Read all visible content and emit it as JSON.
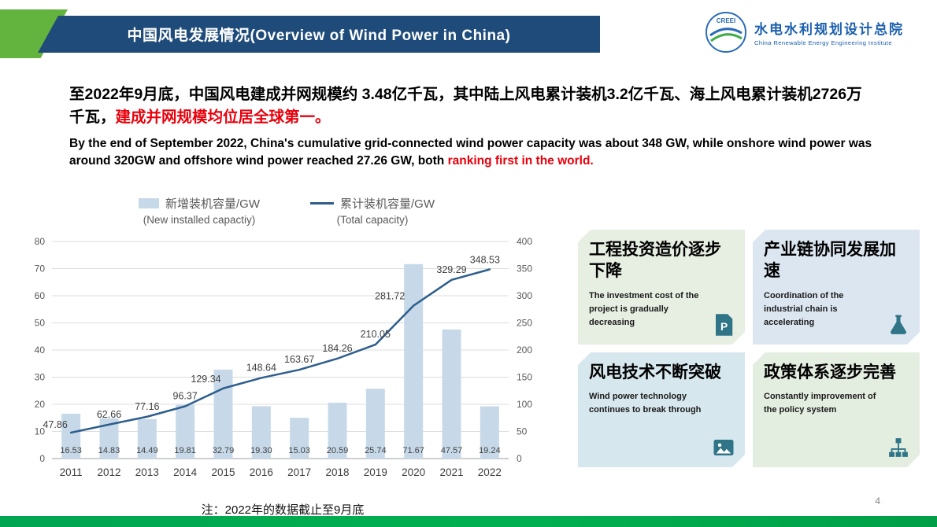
{
  "header": {
    "title": "中国风电发展情况(Overview of Wind Power in China)"
  },
  "logo": {
    "icon": "creei-globe-swirl-icon",
    "badge": "CREEI",
    "org_cn": "水电水利规划设计总院",
    "org_en": "China Renewable Energy Engineering Institute"
  },
  "intro": {
    "cn_main": "至2022年9月底，中国风电建成并网规模约 3.48亿千瓦，其中陆上风电累计装机3.2亿千瓦、海上风电累计装机2726万千瓦，",
    "cn_red": "建成并网规模均位居全球第一。",
    "en_main": "By the end of September 2022, China's cumulative grid-connected wind power capacity was about 348 GW, while onshore wind power was around 320GW and offshore wind power reached 27.26 GW, both ",
    "en_red": "ranking first in the world."
  },
  "chart_data": {
    "type": "bar+line",
    "categories": [
      2011,
      2012,
      2013,
      2014,
      2015,
      2016,
      2017,
      2018,
      2019,
      2020,
      2021,
      2022
    ],
    "series": [
      {
        "name": "新增装机容量/GW",
        "subtitle": "(New installed capactiy)",
        "type": "bar",
        "axis": "left",
        "color": "#C7D9E9",
        "values": [
          16.53,
          14.83,
          14.49,
          19.81,
          32.79,
          19.3,
          15.03,
          20.59,
          25.74,
          71.67,
          47.57,
          19.24
        ]
      },
      {
        "name": "累计装机容量/GW",
        "subtitle": "(Total capacity)",
        "type": "line",
        "axis": "right",
        "color": "#2E5E8C",
        "values": [
          47.86,
          62.66,
          77.16,
          96.37,
          129.34,
          148.64,
          163.67,
          184.26,
          210.05,
          281.72,
          329.29,
          348.53
        ]
      }
    ],
    "left_axis": {
      "min": 0,
      "max": 80,
      "ticks": [
        0,
        10,
        20,
        30,
        40,
        50,
        60,
        70,
        80
      ]
    },
    "right_axis": {
      "min": 0,
      "max": 400,
      "ticks": [
        0,
        50,
        100,
        150,
        200,
        250,
        300,
        350,
        400
      ]
    },
    "grid": true,
    "legend_position": "top",
    "note": "注：2022年的数据截止至9月底"
  },
  "highlights": [
    {
      "title": "工程投资造价逐步下降",
      "body": "The investment cost of the project is gradually decreasing",
      "icon": "document-p-icon",
      "bg": "#E7EEE2"
    },
    {
      "title": "产业链协同发展加速",
      "body": "Coordination of the industrial chain is accelerating",
      "icon": "flask-icon",
      "bg": "#DCE6F1"
    },
    {
      "title": "风电技术不断突破",
      "body": "Wind power technology continues to break through",
      "icon": "photo-icon",
      "bg": "#D7E7EE"
    },
    {
      "title": "政策体系逐步完善",
      "body": "Constantly improvement of the policy system",
      "icon": "org-chart-icon",
      "bg": "#E3EDE0"
    }
  ],
  "footer": {
    "page_number": "4"
  },
  "theme": {
    "header_blue": "#1E4B7A",
    "accent_green": "#62B43F",
    "footer_green": "#00A551",
    "red_text": "#E8000B",
    "icon_teal": "#2F7587",
    "logo_blue": "#1B5FAE"
  }
}
